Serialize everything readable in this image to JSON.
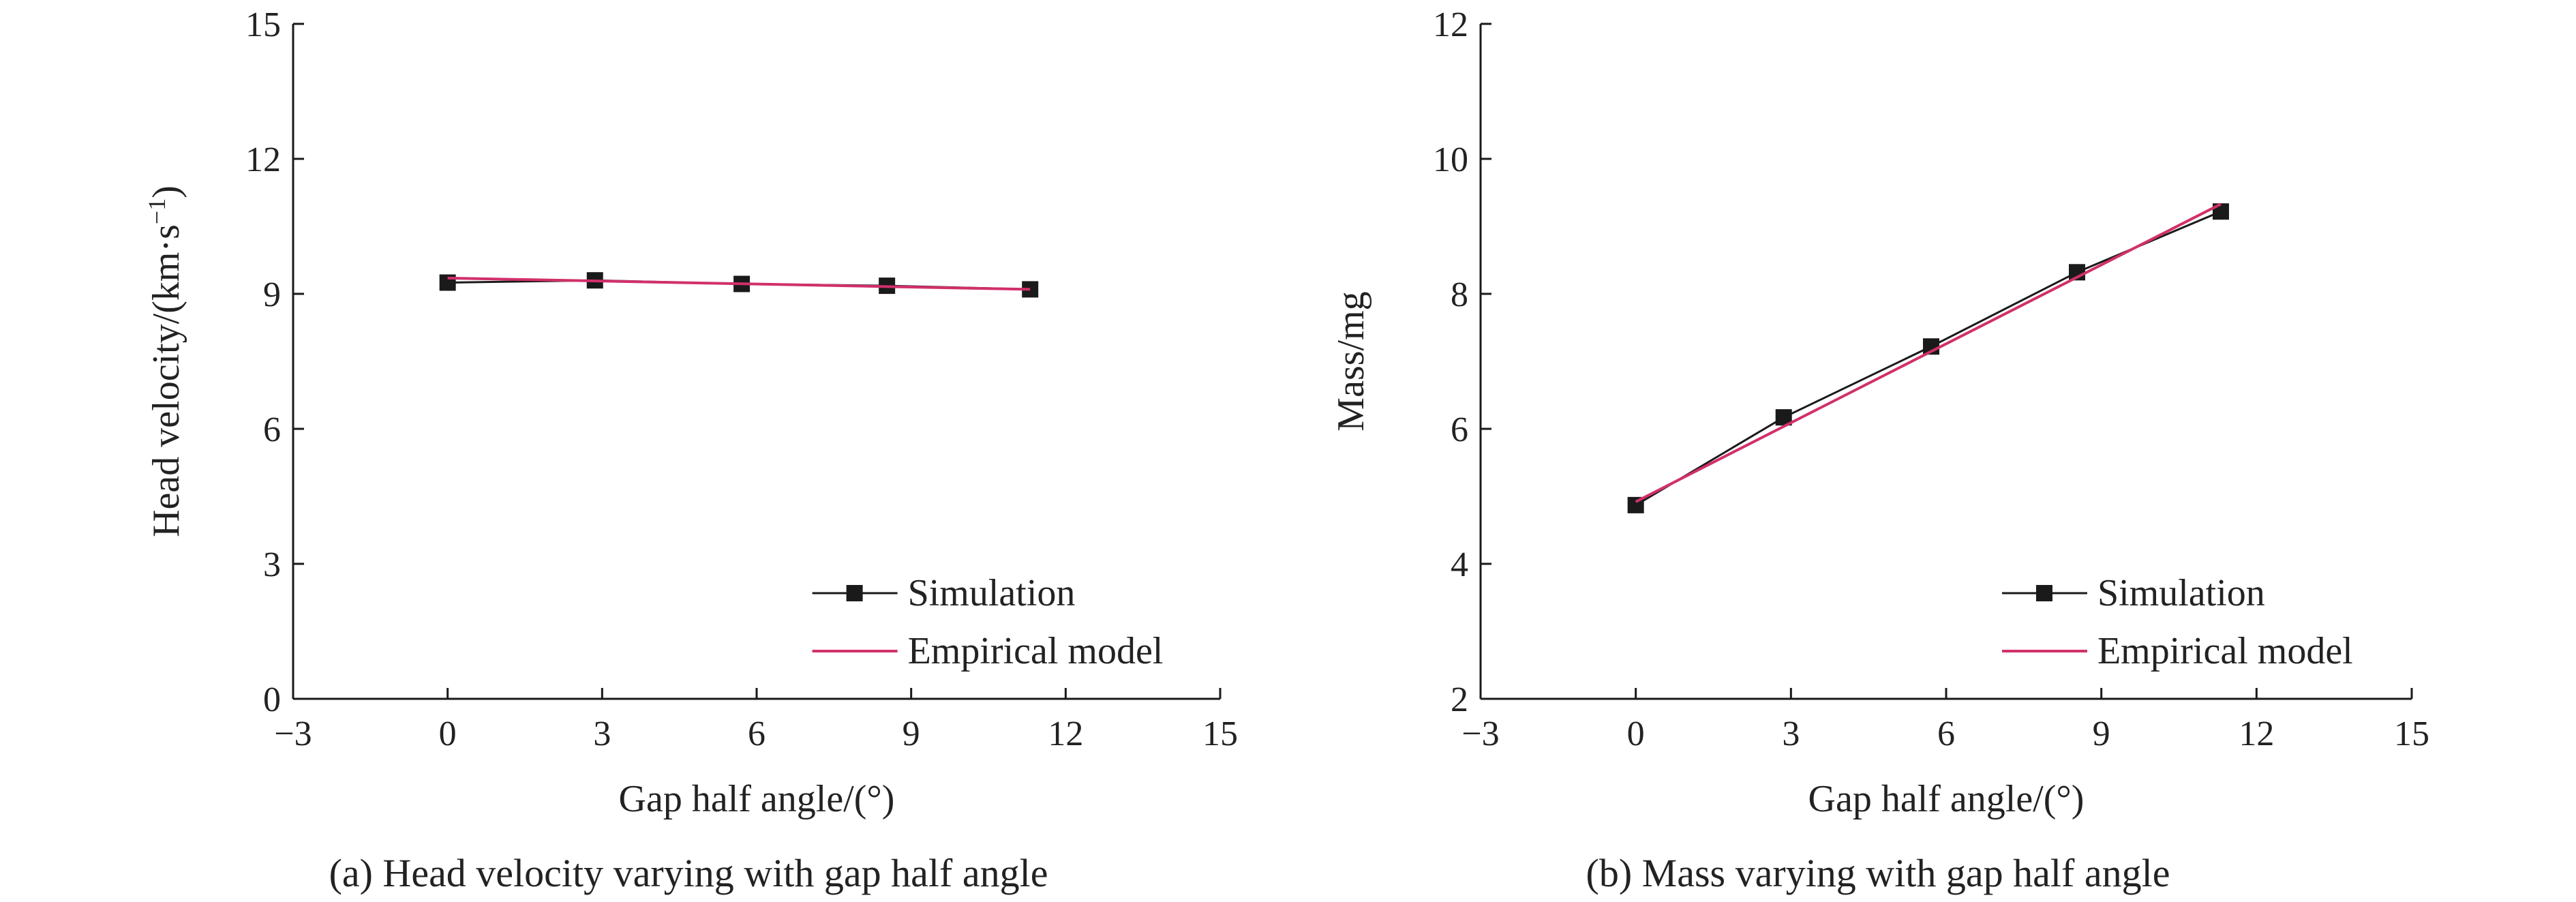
{
  "chart_data": [
    {
      "type": "line",
      "caption": "(a) Head velocity varying with gap half angle",
      "xlabel": "Gap half angle/(°)",
      "ylabel_main": "Head velocity/(km·s",
      "ylabel_sup": "−1",
      "ylabel_end": ")",
      "xlim": [
        -3,
        15
      ],
      "ylim": [
        0,
        15
      ],
      "xticks": [
        -3,
        0,
        3,
        6,
        9,
        12,
        15
      ],
      "yticks": [
        0,
        3,
        6,
        9,
        12,
        15
      ],
      "xtick_labels": [
        "−3",
        "0",
        "3",
        "6",
        "9",
        "12",
        "15"
      ],
      "ytick_labels": [
        "0",
        "3",
        "6",
        "9",
        "12",
        "15"
      ],
      "legend_position": "lower-right",
      "series": [
        {
          "name": "Simulation",
          "color": "#1a1a1a",
          "marker": "square",
          "x": [
            0,
            2.86,
            5.71,
            8.53,
            11.31
          ],
          "y": [
            9.25,
            9.3,
            9.22,
            9.18,
            9.1
          ]
        },
        {
          "name": "Empirical model",
          "color": "#d1306a",
          "marker": "none",
          "x": [
            0,
            11.31
          ],
          "y": [
            9.35,
            9.1
          ]
        }
      ]
    },
    {
      "type": "line",
      "caption": "(b) Mass varying with gap half angle",
      "xlabel": "Gap half angle/(°)",
      "ylabel_main": "Mass/mg",
      "ylabel_sup": "",
      "ylabel_end": "",
      "xlim": [
        -3,
        15
      ],
      "ylim": [
        2,
        12
      ],
      "xticks": [
        -3,
        0,
        3,
        6,
        9,
        12,
        15
      ],
      "yticks": [
        2,
        4,
        6,
        8,
        10,
        12
      ],
      "xtick_labels": [
        "−3",
        "0",
        "3",
        "6",
        "9",
        "12",
        "15"
      ],
      "ytick_labels": [
        "2",
        "4",
        "6",
        "8",
        "10",
        "12"
      ],
      "legend_position": "lower-right",
      "series": [
        {
          "name": "Simulation",
          "color": "#1a1a1a",
          "marker": "square",
          "x": [
            0,
            2.86,
            5.71,
            8.53,
            11.31
          ],
          "y": [
            4.87,
            6.17,
            7.22,
            8.32,
            9.22
          ]
        },
        {
          "name": "Empirical model",
          "color": "#d1306a",
          "marker": "none",
          "x": [
            0,
            11.31
          ],
          "y": [
            4.92,
            9.33
          ]
        }
      ]
    }
  ]
}
